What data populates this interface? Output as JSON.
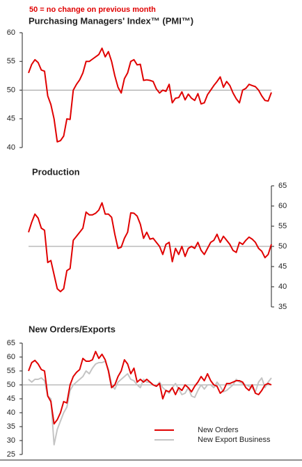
{
  "chart_data": [
    {
      "type": "line",
      "annotation": "50 =  no change on previous month",
      "title": "Purchasing Managers' Index™ (PMI™)",
      "ylim": [
        40,
        60
      ],
      "yticks": [
        40,
        45,
        50,
        55,
        60
      ],
      "y_axis_side": "left",
      "reference_line": 50,
      "series": [
        {
          "name": "PMI",
          "color": "#e00000",
          "values": [
            53,
            54.5,
            55.3,
            54.8,
            53.5,
            53.3,
            49,
            47.5,
            45,
            41,
            41.2,
            42,
            45,
            44.9,
            50,
            51,
            51.8,
            53,
            55,
            55,
            55.4,
            55.8,
            56.2,
            57.3,
            55.8,
            56.7,
            55,
            52.5,
            50.5,
            49.5,
            52,
            53,
            55,
            55.3,
            54.4,
            54.5,
            51.7,
            51.8,
            51.7,
            51.5,
            50.2,
            49.5,
            50,
            49.8,
            51,
            47.8,
            48.6,
            48.7,
            49.7,
            48.3,
            49.3,
            48.6,
            48.2,
            49.4,
            47.6,
            47.8,
            49.2,
            50,
            50.8,
            51.5,
            52.3,
            50.5,
            51.5,
            50.8,
            49.5,
            48.5,
            47.8,
            50,
            50.3,
            51,
            50.8,
            50.6,
            50,
            49,
            48.2,
            48.1,
            49.6
          ]
        }
      ]
    },
    {
      "type": "line",
      "title": "Production",
      "ylim": [
        35,
        65
      ],
      "yticks": [
        35,
        40,
        45,
        50,
        55,
        60,
        65
      ],
      "y_axis_side": "right",
      "reference_line": 50,
      "series": [
        {
          "name": "Production",
          "color": "#e00000",
          "values": [
            53.5,
            56,
            58,
            57,
            54.5,
            54,
            46,
            46.5,
            43,
            39.5,
            38.8,
            39.5,
            44,
            44.5,
            51.5,
            52.5,
            53.5,
            54.5,
            58.5,
            57.8,
            57.8,
            58.2,
            59,
            60.8,
            58,
            58,
            57.2,
            53,
            49.5,
            49.8,
            52,
            53.5,
            58.3,
            58.2,
            57.5,
            55.5,
            52,
            53.5,
            51.8,
            52,
            51,
            50,
            48,
            50.5,
            51,
            46.2,
            49.5,
            48,
            50,
            47.5,
            49.5,
            50,
            49.5,
            51,
            49,
            48,
            49.5,
            51,
            51.5,
            53,
            51,
            52.5,
            51.5,
            50.5,
            49,
            48.5,
            51,
            50.5,
            51.5,
            52.3,
            51.8,
            51,
            49.5,
            48.8,
            47.2,
            48,
            50.5
          ]
        }
      ]
    },
    {
      "type": "line",
      "title": "New Orders/Exports",
      "ylim": [
        25,
        65
      ],
      "yticks": [
        25,
        30,
        35,
        40,
        45,
        50,
        55,
        60,
        65
      ],
      "y_axis_side": "left",
      "reference_line": 50,
      "legend_position": "lower right",
      "series": [
        {
          "name": "New Export Business",
          "color": "#c4c4c4",
          "values": [
            52,
            51,
            52,
            52,
            52.5,
            51.5,
            46,
            45,
            28.5,
            34,
            37,
            40,
            42,
            48,
            50,
            51,
            52,
            53,
            55,
            54,
            56,
            57.5,
            58,
            58,
            58.5,
            55.5,
            50,
            48.5,
            51,
            52,
            53,
            54,
            52,
            51.5,
            50,
            49,
            52,
            51,
            51,
            50,
            49.5,
            51,
            49,
            48,
            47,
            49,
            50.5,
            48.5,
            46.5,
            47,
            49,
            46,
            45.5,
            48,
            50,
            48.5,
            50,
            50,
            49,
            51,
            49.5,
            47.5,
            48,
            49,
            50,
            52,
            51,
            50.5,
            50,
            49.5,
            49,
            47.5,
            51,
            52.5,
            49,
            51,
            52.5
          ]
        },
        {
          "name": "New Orders",
          "color": "#e00000",
          "values": [
            55,
            58,
            58.8,
            57.5,
            55.5,
            55,
            46,
            44,
            36,
            37.5,
            40,
            44,
            43.5,
            50,
            53,
            54.5,
            55.5,
            59.5,
            58.5,
            58.5,
            59,
            62,
            59.5,
            61,
            59,
            55,
            49,
            50,
            53,
            55,
            59,
            57.5,
            54,
            56,
            51,
            52,
            51,
            52,
            51,
            50,
            49.5,
            50.5,
            45,
            48,
            47.5,
            49,
            46.5,
            49,
            48,
            50,
            49,
            47.5,
            49.5,
            51,
            53,
            51.5,
            54,
            51.5,
            50,
            49.5,
            47,
            48,
            50.5,
            50.5,
            51,
            51.5,
            51.5,
            51,
            49,
            48,
            50,
            47,
            46.5,
            48,
            50,
            50.5,
            50
          ]
        }
      ]
    }
  ]
}
